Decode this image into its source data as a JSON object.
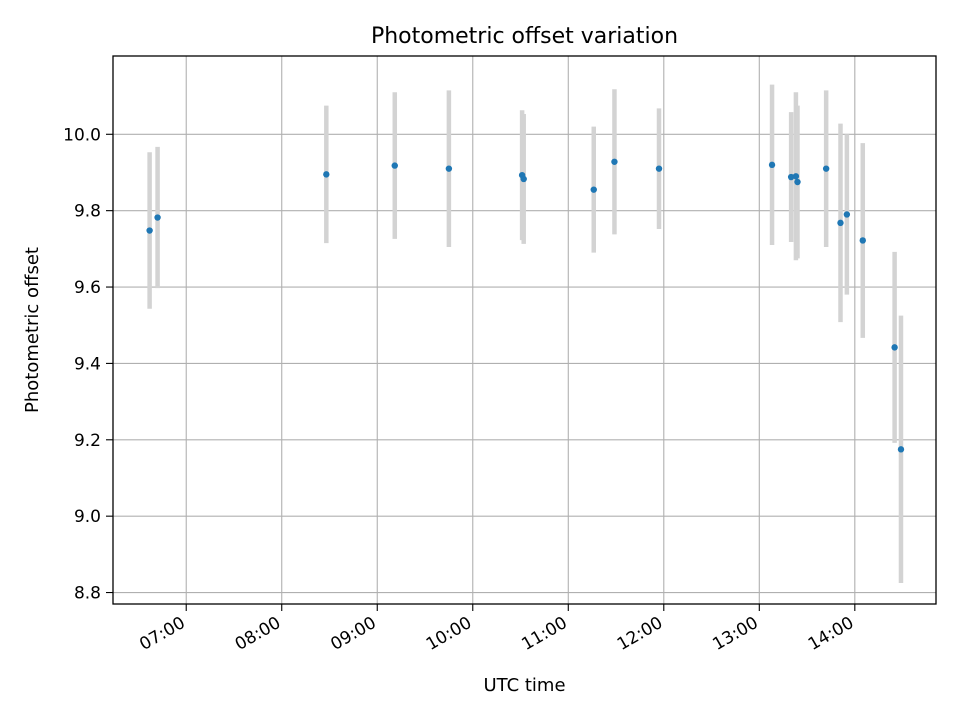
{
  "chart_data": {
    "type": "scatter",
    "title": "Photometric offset variation",
    "xlabel": "UTC time",
    "ylabel": "Photometric offset",
    "x_unit": "time-of-day",
    "xlim": [
      "06:14",
      "14:51"
    ],
    "ylim": [
      8.77,
      10.205
    ],
    "xticks": [
      "07:00",
      "08:00",
      "09:00",
      "10:00",
      "11:00",
      "12:00",
      "13:00",
      "14:00"
    ],
    "yticks": [
      "8.8",
      "9.0",
      "9.2",
      "9.4",
      "9.6",
      "9.8",
      "10.0"
    ],
    "grid": true,
    "legend": "none",
    "colors": {
      "point": "#1f77b4",
      "errorbar": "#d3d3d3",
      "grid": "#b0b0b0"
    },
    "points": [
      {
        "x": "06:37",
        "y": 9.748,
        "yerr": 0.205
      },
      {
        "x": "06:42",
        "y": 9.782,
        "yerr": 0.185
      },
      {
        "x": "08:28",
        "y": 9.895,
        "yerr": 0.18
      },
      {
        "x": "09:11",
        "y": 9.918,
        "yerr": 0.192
      },
      {
        "x": "09:45",
        "y": 9.91,
        "yerr": 0.205
      },
      {
        "x": "10:31",
        "y": 9.893,
        "yerr": 0.17
      },
      {
        "x": "10:32",
        "y": 9.883,
        "yerr": 0.17
      },
      {
        "x": "11:16",
        "y": 9.855,
        "yerr": 0.165
      },
      {
        "x": "11:29",
        "y": 9.928,
        "yerr": 0.19
      },
      {
        "x": "11:57",
        "y": 9.91,
        "yerr": 0.158
      },
      {
        "x": "13:08",
        "y": 9.92,
        "yerr": 0.21
      },
      {
        "x": "13:20",
        "y": 9.888,
        "yerr": 0.17
      },
      {
        "x": "13:23",
        "y": 9.89,
        "yerr": 0.22
      },
      {
        "x": "13:24",
        "y": 9.875,
        "yerr": 0.2
      },
      {
        "x": "13:42",
        "y": 9.91,
        "yerr": 0.205
      },
      {
        "x": "13:51",
        "y": 9.768,
        "yerr": 0.26
      },
      {
        "x": "13:55",
        "y": 9.79,
        "yerr": 0.21
      },
      {
        "x": "14:05",
        "y": 9.722,
        "yerr": 0.255
      },
      {
        "x": "14:25",
        "y": 9.442,
        "yerr": 0.25
      },
      {
        "x": "14:29",
        "y": 9.175,
        "yerr": 0.35
      }
    ]
  }
}
